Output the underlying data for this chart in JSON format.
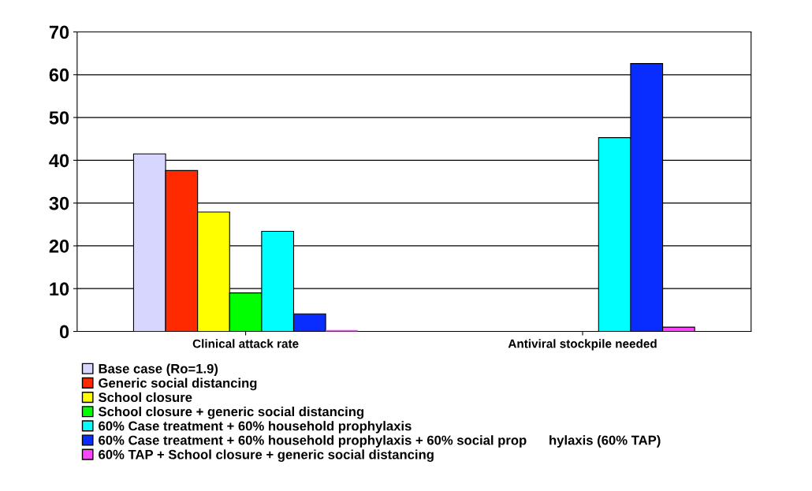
{
  "chart_data": {
    "type": "bar",
    "categories": [
      "Clinical attack rate",
      "Antiviral stockpile needed"
    ],
    "series": [
      {
        "name": "Base case (Ro=1.9)",
        "color": "#d6d6ff",
        "values": [
          41.5,
          null
        ]
      },
      {
        "name": "Generic social distancing",
        "color": "#ff2a00",
        "values": [
          37.6,
          null
        ]
      },
      {
        "name": "School closure",
        "color": "#ffff00",
        "values": [
          27.9,
          null
        ]
      },
      {
        "name": "School closure + generic social distancing",
        "color": "#00ff00",
        "values": [
          9.0,
          null
        ]
      },
      {
        "name": "60% Case treatment + 60% household prophylaxis",
        "color": "#00ffff",
        "values": [
          23.4,
          45.3
        ]
      },
      {
        "name": "60% Case treatment + 60% household prophylaxis + 60% social prop      hylaxis (60% TAP)",
        "color": "#0a2dff",
        "values": [
          4.1,
          62.6
        ]
      },
      {
        "name": "60% TAP + School closure + generic social distancing",
        "color": "#ff44ff",
        "values": [
          0,
          1.0
        ]
      }
    ],
    "ylim": [
      0,
      70
    ],
    "yticks": [
      0,
      10,
      20,
      30,
      40,
      50,
      60,
      70
    ],
    "grid": "y",
    "legend": "bottom left"
  }
}
